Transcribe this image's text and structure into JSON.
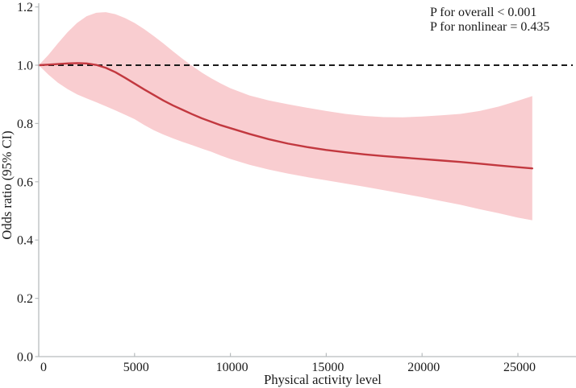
{
  "chart_data": {
    "type": "line",
    "title": "",
    "xlabel": "Physical activity level",
    "ylabel": "Odds ratio (95% CI)",
    "xlim": [
      0,
      28000
    ],
    "ylim": [
      0.0,
      1.2
    ],
    "x_ticks": [
      0,
      5000,
      10000,
      15000,
      20000,
      25000
    ],
    "x_tick_labels": [
      "0",
      "5000",
      "10000",
      "15000",
      "20000",
      "25000"
    ],
    "y_ticks": [
      0.0,
      0.2,
      0.4,
      0.6,
      0.8,
      1.0,
      1.2
    ],
    "y_tick_labels": [
      "0.0",
      "0.2",
      "0.4",
      "0.6",
      "0.8",
      "1.0",
      "1.2"
    ],
    "grid": false,
    "legend": "none",
    "reference_line_y": 1.0,
    "annotations": {
      "p_overall": "P for overall < 0.001",
      "p_nonlinear": "P for nonlinear = 0.435"
    },
    "x": [
      0,
      500,
      1000,
      1500,
      2000,
      2500,
      3000,
      3500,
      4000,
      4500,
      5000,
      5500,
      6000,
      6500,
      7000,
      7500,
      8000,
      8500,
      9000,
      9500,
      10000,
      11000,
      12000,
      13000,
      14000,
      15000,
      16000,
      17000,
      18000,
      19000,
      20000,
      21000,
      22000,
      23000,
      24000,
      25000,
      25750
    ],
    "series": [
      {
        "name": "Odds ratio",
        "values": [
          1.0,
          1.002,
          1.004,
          1.006,
          1.007,
          1.006,
          1.001,
          0.991,
          0.976,
          0.957,
          0.937,
          0.917,
          0.898,
          0.879,
          0.862,
          0.847,
          0.832,
          0.818,
          0.806,
          0.794,
          0.784,
          0.764,
          0.746,
          0.731,
          0.719,
          0.709,
          0.701,
          0.694,
          0.688,
          0.683,
          0.678,
          0.673,
          0.668,
          0.662,
          0.656,
          0.65,
          0.646
        ]
      },
      {
        "name": "95% CI upper",
        "values": [
          1.0,
          1.035,
          1.075,
          1.113,
          1.145,
          1.168,
          1.18,
          1.182,
          1.175,
          1.162,
          1.145,
          1.124,
          1.1,
          1.075,
          1.048,
          1.022,
          0.998,
          0.975,
          0.955,
          0.937,
          0.921,
          0.896,
          0.879,
          0.866,
          0.854,
          0.843,
          0.833,
          0.826,
          0.822,
          0.821,
          0.824,
          0.828,
          0.833,
          0.843,
          0.858,
          0.878,
          0.894
        ]
      },
      {
        "name": "95% CI lower",
        "values": [
          1.0,
          0.968,
          0.94,
          0.918,
          0.9,
          0.886,
          0.873,
          0.859,
          0.845,
          0.83,
          0.815,
          0.795,
          0.777,
          0.762,
          0.749,
          0.737,
          0.726,
          0.714,
          0.703,
          0.69,
          0.678,
          0.658,
          0.642,
          0.628,
          0.616,
          0.605,
          0.594,
          0.583,
          0.571,
          0.559,
          0.547,
          0.534,
          0.521,
          0.506,
          0.492,
          0.477,
          0.468
        ]
      }
    ],
    "colors": {
      "line": "#c2383f",
      "band": "#f9cdd0",
      "reference_line": "#1a1a1a",
      "axis": "#b8bcbe",
      "text": "#1a1a1a"
    }
  }
}
